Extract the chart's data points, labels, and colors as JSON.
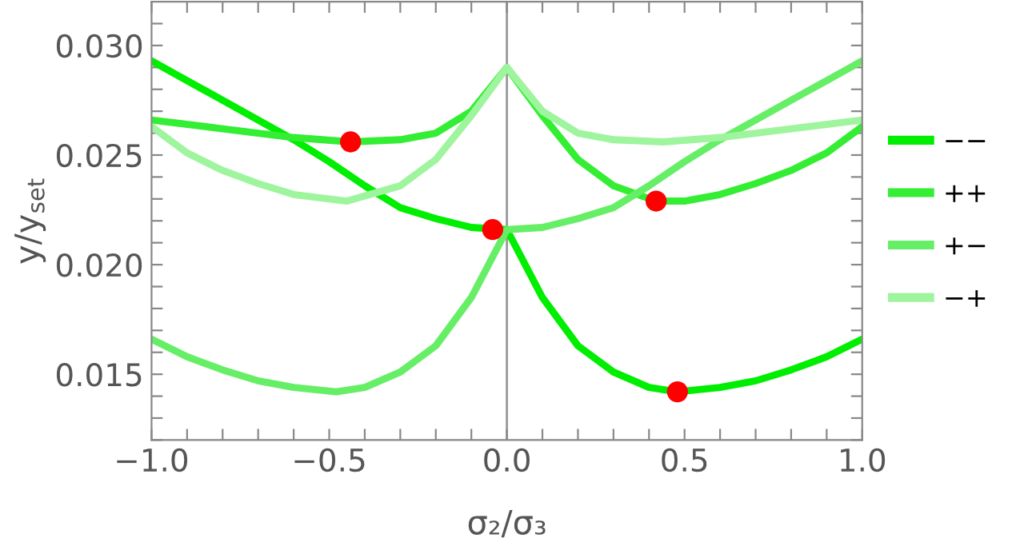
{
  "chart_data": {
    "type": "line",
    "xlabel": "σ₂/σ₃",
    "ylabel": "y/y$_{set}$",
    "xlim": [
      -1.0,
      1.0
    ],
    "ylim": [
      0.012,
      0.032
    ],
    "xticks": [
      {
        "value": -1.0,
        "label": "−1.0"
      },
      {
        "value": -0.9,
        "label": null
      },
      {
        "value": -0.8,
        "label": null
      },
      {
        "value": -0.7,
        "label": null
      },
      {
        "value": -0.6,
        "label": null
      },
      {
        "value": -0.5,
        "label": "−0.5"
      },
      {
        "value": -0.4,
        "label": null
      },
      {
        "value": -0.3,
        "label": null
      },
      {
        "value": -0.2,
        "label": null
      },
      {
        "value": -0.1,
        "label": null
      },
      {
        "value": 0.0,
        "label": "0.0"
      },
      {
        "value": 0.1,
        "label": null
      },
      {
        "value": 0.2,
        "label": null
      },
      {
        "value": 0.3,
        "label": null
      },
      {
        "value": 0.4,
        "label": null
      },
      {
        "value": 0.5,
        "label": "0.5"
      },
      {
        "value": 0.6,
        "label": null
      },
      {
        "value": 0.7,
        "label": null
      },
      {
        "value": 0.8,
        "label": null
      },
      {
        "value": 0.9,
        "label": null
      },
      {
        "value": 1.0,
        "label": "1.0"
      }
    ],
    "yticks": [
      {
        "value": 0.012,
        "label": null
      },
      {
        "value": 0.013,
        "label": null
      },
      {
        "value": 0.014,
        "label": null
      },
      {
        "value": 0.015,
        "label": "0.015"
      },
      {
        "value": 0.016,
        "label": null
      },
      {
        "value": 0.017,
        "label": null
      },
      {
        "value": 0.018,
        "label": null
      },
      {
        "value": 0.019,
        "label": null
      },
      {
        "value": 0.02,
        "label": "0.020"
      },
      {
        "value": 0.021,
        "label": null
      },
      {
        "value": 0.022,
        "label": null
      },
      {
        "value": 0.023,
        "label": null
      },
      {
        "value": 0.024,
        "label": null
      },
      {
        "value": 0.025,
        "label": "0.025"
      },
      {
        "value": 0.026,
        "label": null
      },
      {
        "value": 0.027,
        "label": null
      },
      {
        "value": 0.028,
        "label": null
      },
      {
        "value": 0.029,
        "label": null
      },
      {
        "value": 0.03,
        "label": "0.030"
      },
      {
        "value": 0.031,
        "label": null
      }
    ],
    "grid": false,
    "legend": "right",
    "marker": "none",
    "line_style": "solid",
    "ref_lines": [
      {
        "axis": "x",
        "value": 0.0,
        "color": "#999999",
        "line_style": "solid"
      }
    ],
    "series": [
      {
        "name": "−−",
        "color": "#00ee00",
        "x": [
          -1.0,
          -0.9,
          -0.8,
          -0.7,
          -0.6,
          -0.5,
          -0.4,
          -0.3,
          -0.2,
          -0.1,
          0.0,
          0.1,
          0.2,
          0.3,
          0.4,
          0.48,
          0.6,
          0.7,
          0.8,
          0.9,
          1.0
        ],
        "values": [
          0.0293,
          0.0284,
          0.0275,
          0.0266,
          0.0257,
          0.0247,
          0.0236,
          0.0226,
          0.0221,
          0.0217,
          0.0216,
          0.0185,
          0.0163,
          0.0151,
          0.0144,
          0.0142,
          0.0144,
          0.0147,
          0.0152,
          0.0158,
          0.0166
        ]
      },
      {
        "name": "++",
        "color": "#33ee33",
        "x": [
          -1.0,
          -0.8,
          -0.6,
          -0.44,
          -0.3,
          -0.2,
          -0.1,
          0.0,
          0.1,
          0.2,
          0.3,
          0.42,
          0.5,
          0.6,
          0.7,
          0.8,
          0.9,
          1.0
        ],
        "values": [
          0.0266,
          0.0262,
          0.0258,
          0.0256,
          0.0257,
          0.026,
          0.027,
          0.029,
          0.0268,
          0.0248,
          0.0236,
          0.0229,
          0.0229,
          0.0232,
          0.0237,
          0.0243,
          0.0251,
          0.0263
        ]
      },
      {
        "name": "+−",
        "color": "#66ef66",
        "x": [
          -1.0,
          -0.9,
          -0.8,
          -0.7,
          -0.6,
          -0.48,
          -0.4,
          -0.3,
          -0.2,
          -0.1,
          0.0,
          0.1,
          0.2,
          0.3,
          0.4,
          0.5,
          0.6,
          0.7,
          0.8,
          0.9,
          1.0
        ],
        "values": [
          0.0166,
          0.0158,
          0.0152,
          0.0147,
          0.0144,
          0.0142,
          0.0144,
          0.0151,
          0.0163,
          0.0185,
          0.0216,
          0.0217,
          0.0221,
          0.0226,
          0.0236,
          0.0247,
          0.0257,
          0.0266,
          0.0275,
          0.0284,
          0.0293
        ]
      },
      {
        "name": "−+",
        "color": "#9ef59e",
        "x": [
          -1.0,
          -0.9,
          -0.8,
          -0.7,
          -0.6,
          -0.45,
          -0.3,
          -0.2,
          -0.1,
          0.0,
          0.1,
          0.2,
          0.3,
          0.44,
          0.6,
          0.8,
          1.0
        ],
        "values": [
          0.0263,
          0.0251,
          0.0243,
          0.0237,
          0.0232,
          0.0229,
          0.0236,
          0.0248,
          0.0268,
          0.029,
          0.027,
          0.026,
          0.0257,
          0.0256,
          0.0258,
          0.0262,
          0.0266
        ]
      },
      {
        "type": "scatter",
        "marker": "circle",
        "color": "#ff0000",
        "x": [
          -0.44,
          -0.04,
          0.42,
          0.48
        ],
        "values": [
          0.0256,
          0.0216,
          0.0229,
          0.0142
        ]
      }
    ]
  }
}
